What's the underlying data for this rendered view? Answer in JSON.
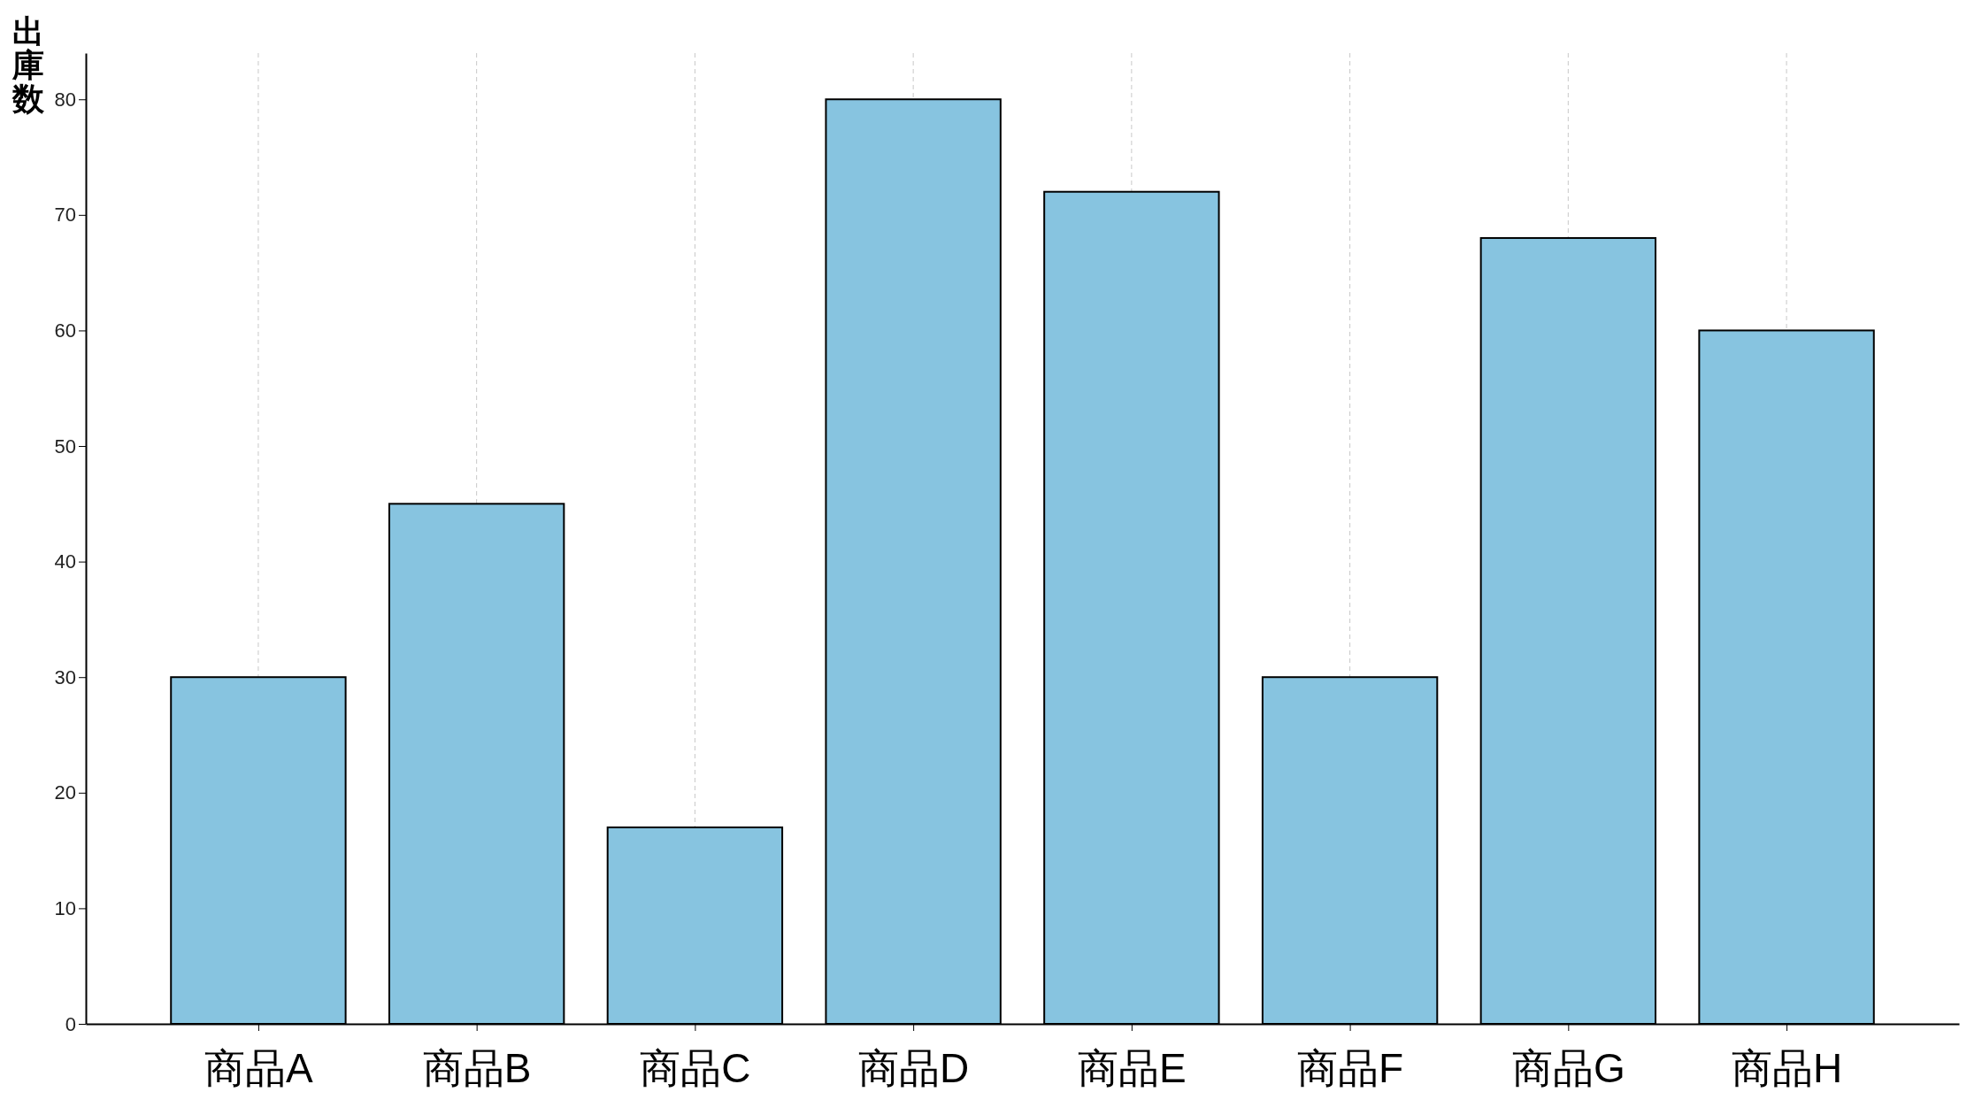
{
  "chart_data": {
    "type": "bar",
    "ylabel": "出庫数",
    "categories": [
      "商品A",
      "商品B",
      "商品C",
      "商品D",
      "商品E",
      "商品F",
      "商品G",
      "商品H"
    ],
    "values": [
      30,
      45,
      17,
      80,
      72,
      30,
      68,
      60
    ],
    "color": "#87c4e0",
    "ylim": [
      0,
      84
    ],
    "yticks": [
      0,
      10,
      20,
      30,
      40,
      50,
      60,
      70,
      80
    ],
    "grid": "x"
  }
}
